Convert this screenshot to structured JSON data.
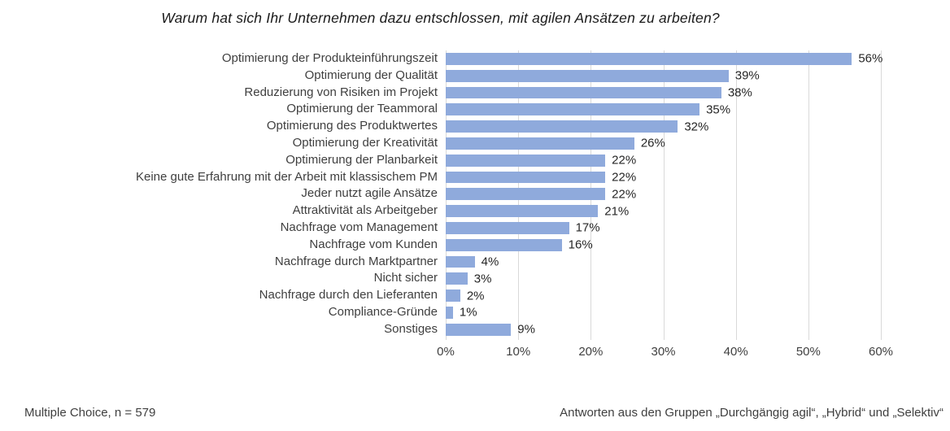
{
  "chart_data": {
    "type": "bar",
    "orientation": "horizontal",
    "title": "Warum hat sich Ihr Unternehmen dazu entschlossen, mit agilen Ansätzen zu arbeiten?",
    "categories": [
      "Optimierung der Produkteinführungszeit",
      "Optimierung der Qualität",
      "Reduzierung von Risiken im Projekt",
      "Optimierung der Teammoral",
      "Optimierung des Produktwertes",
      "Optimierung der Kreativität",
      "Optimierung der Planbarkeit",
      "Keine gute Erfahrung mit der Arbeit mit klassischem PM",
      "Jeder nutzt agile Ansätze",
      "Attraktivität als Arbeitgeber",
      "Nachfrage vom Management",
      "Nachfrage vom Kunden",
      "Nachfrage durch Marktpartner",
      "Nicht sicher",
      "Nachfrage durch den Lieferanten",
      "Compliance-Gründe",
      "Sonstiges"
    ],
    "values": [
      56,
      39,
      38,
      35,
      32,
      26,
      22,
      22,
      22,
      21,
      17,
      16,
      4,
      3,
      2,
      1,
      9
    ],
    "value_labels": [
      "56%",
      "39%",
      "38%",
      "35%",
      "32%",
      "26%",
      "22%",
      "22%",
      "22%",
      "21%",
      "17%",
      "16%",
      "4%",
      "3%",
      "2%",
      "1%",
      "9%"
    ],
    "xlabel": "",
    "ylabel": "",
    "xlim": [
      0,
      60
    ],
    "x_ticks": [
      "0%",
      "10%",
      "20%",
      "30%",
      "40%",
      "50%",
      "60%"
    ],
    "grid": "vertical",
    "legend": "none",
    "bar_color": "#8faadc",
    "gridline_color": "#d9d9d9"
  },
  "footer": {
    "left": "Multiple Choice, n = 579",
    "right": "Antworten aus den Gruppen „Durchgängig agil“, „Hybrid“ und „Selektiv“"
  }
}
